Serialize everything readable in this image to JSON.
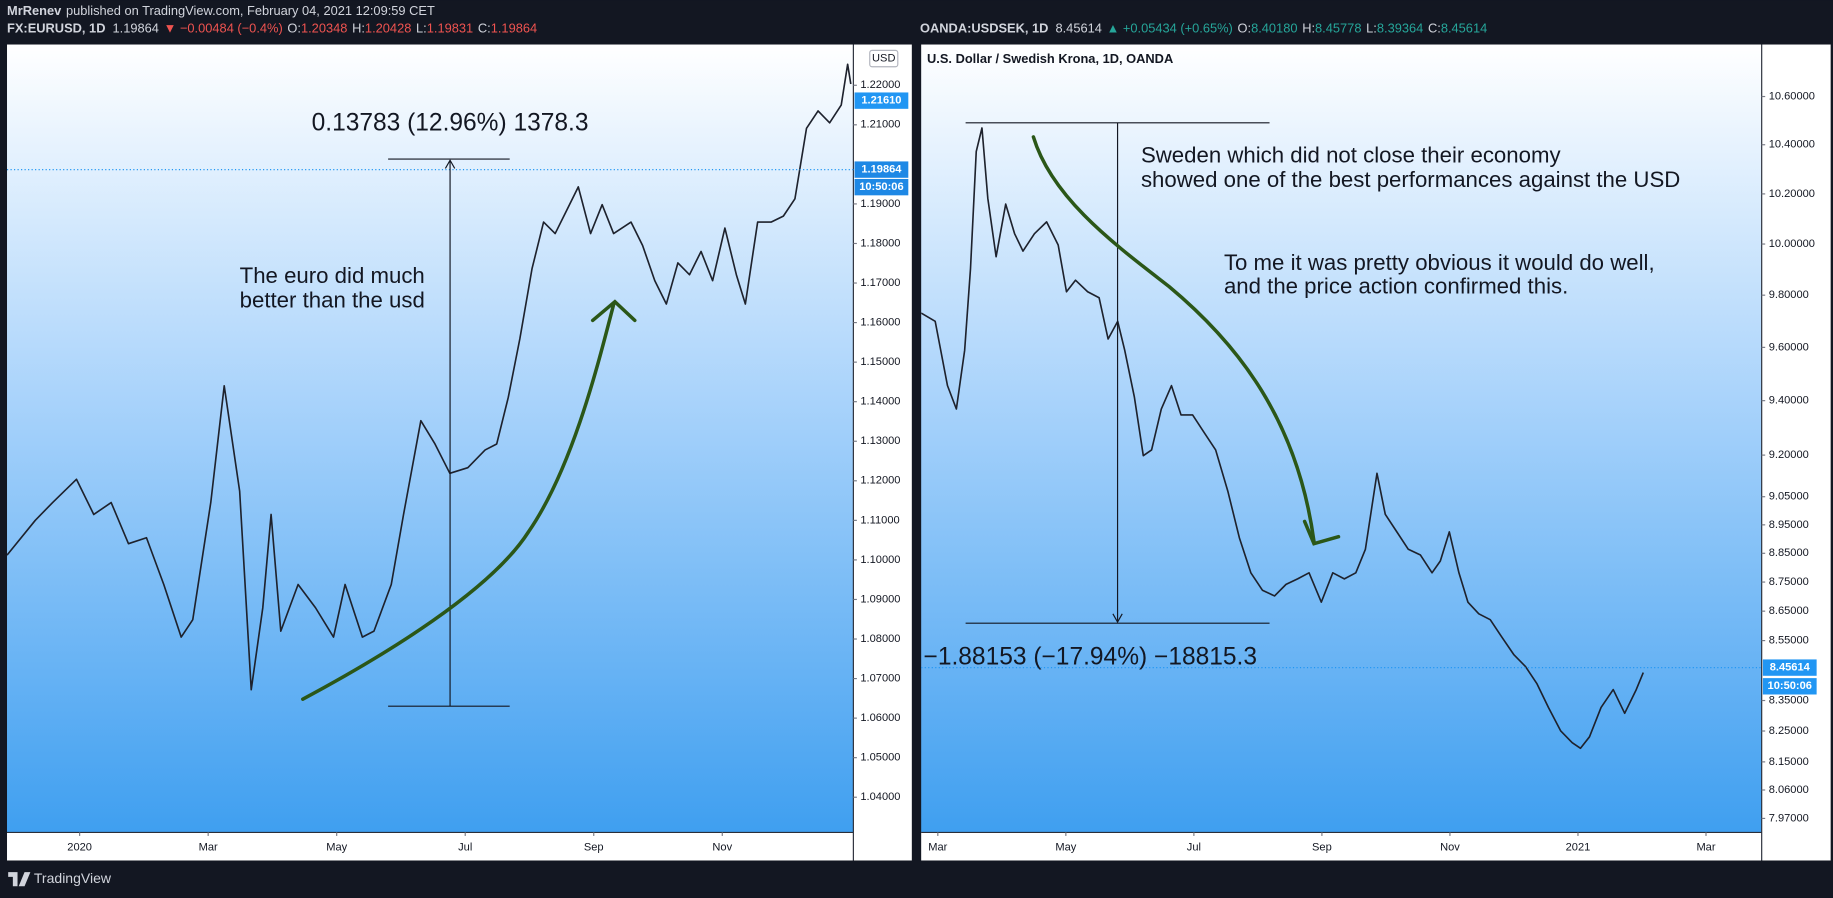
{
  "header": {
    "author": "MrRenev",
    "published": "published on TradingView.com, February 04, 2021 12:09:59 CET"
  },
  "footer": {
    "brand": "TradingView"
  },
  "chart_data": [
    {
      "type": "line",
      "symbol": "FX:EURUSD, 1D",
      "last": "1.19864",
      "change": "▼ −0.00484 (−0.4%)",
      "change_color": "#ef5350",
      "ohlc": [
        [
          "O:",
          "1.20348"
        ],
        [
          "H:",
          "1.20428"
        ],
        [
          "L:",
          "1.19831"
        ],
        [
          "C:",
          "1.19864"
        ]
      ],
      "currency": "USD",
      "price_tags": [
        "1.21610",
        "1.19864",
        "10:50:06"
      ],
      "measure": "0.13783 (12.96%) 1378.3",
      "notes": [
        "The euro did much",
        "better than the usd"
      ],
      "color": "#1e222d",
      "log_scale": false,
      "x": [
        -1.13,
        -0.69,
        -0.42,
        -0.05,
        0.22,
        0.49,
        0.76,
        1.04,
        1.31,
        1.58,
        1.76,
        2.04,
        2.25,
        2.49,
        2.67,
        2.85,
        2.98,
        3.13,
        3.4,
        3.67,
        3.95,
        4.13,
        4.4,
        4.58,
        4.85,
        5.04,
        5.31,
        5.53,
        5.76,
        6.04,
        6.31,
        6.49,
        6.67,
        6.85,
        7.04,
        7.22,
        7.4,
        7.58,
        7.76,
        7.95,
        8.13,
        8.31,
        8.58,
        8.76,
        8.95,
        9.13,
        9.31,
        9.49,
        9.67,
        9.85,
        10.04,
        10.22,
        10.36,
        10.55,
        10.76,
        10.95,
        11.13,
        11.31,
        11.49,
        11.67,
        11.85,
        11.95,
        12
      ],
      "values": [
        1.1012,
        1.11,
        1.1145,
        1.1204,
        1.1115,
        1.1145,
        1.1041,
        1.1056,
        1.0938,
        1.0805,
        1.0849,
        1.1145,
        1.144,
        1.1174,
        1.0672,
        1.0879,
        1.1115,
        1.082,
        1.0938,
        1.0879,
        1.0805,
        1.0938,
        1.0805,
        1.082,
        1.0938,
        1.1115,
        1.1352,
        1.1293,
        1.1219,
        1.1233,
        1.1278,
        1.1293,
        1.1411,
        1.1559,
        1.1736,
        1.1854,
        1.1825,
        1.1884,
        1.1943,
        1.1825,
        1.1898,
        1.1825,
        1.1854,
        1.1795,
        1.1706,
        1.1647,
        1.1751,
        1.1721,
        1.178,
        1.1706,
        1.1839,
        1.1721,
        1.1647,
        1.1854,
        1.1854,
        1.1869,
        1.1913,
        1.2091,
        1.2135,
        1.2105,
        1.215,
        1.2253,
        1.2203
      ],
      "xlim": [
        -1.13,
        12.04
      ],
      "xticks": [
        {
          "value": 0,
          "label": "2020"
        },
        {
          "value": 2,
          "label": "Mar"
        },
        {
          "value": 4,
          "label": "May"
        },
        {
          "value": 6,
          "label": "Jul"
        },
        {
          "value": 8,
          "label": "Sep"
        },
        {
          "value": 10,
          "label": "Nov"
        }
      ],
      "ylim": [
        1.0311,
        1.2303
      ],
      "yticks": [
        {
          "value": 1.04,
          "label": "1.04000"
        },
        {
          "value": 1.05,
          "label": "1.05000"
        },
        {
          "value": 1.06,
          "label": "1.06000"
        },
        {
          "value": 1.07,
          "label": "1.07000"
        },
        {
          "value": 1.08,
          "label": "1.08000"
        },
        {
          "value": 1.09,
          "label": "1.09000"
        },
        {
          "value": 1.1,
          "label": "1.10000"
        },
        {
          "value": 1.11,
          "label": "1.11000"
        },
        {
          "value": 1.12,
          "label": "1.12000"
        },
        {
          "value": 1.13,
          "label": "1.13000"
        },
        {
          "value": 1.14,
          "label": "1.14000"
        },
        {
          "value": 1.15,
          "label": "1.15000"
        },
        {
          "value": 1.16,
          "label": "1.16000"
        },
        {
          "value": 1.17,
          "label": "1.17000"
        },
        {
          "value": 1.18,
          "label": "1.18000"
        },
        {
          "value": 1.19,
          "label": "1.19000"
        },
        {
          "value": 1.21,
          "label": "1.21000"
        },
        {
          "value": 1.22,
          "label": "1.22000"
        }
      ]
    },
    {
      "type": "line",
      "symbol": "OANDA:USDSEK, 1D",
      "last": "8.45614",
      "change": "▲ +0.05434 (+0.65%)",
      "change_color": "#26a69a",
      "ohlc": [
        [
          "O:",
          "8.40180"
        ],
        [
          "H:",
          "8.45778"
        ],
        [
          "L:",
          "8.39364"
        ],
        [
          "C:",
          "8.45614"
        ]
      ],
      "title": "U.S. Dollar / Swedish Krona, 1D, OANDA",
      "price_tags": [
        "8.45614",
        "10:50:06"
      ],
      "measure": "−1.88153 (−17.94%) −18815.3",
      "notes": [
        "Sweden which did not close their economy",
        "showed one of the best performances against the USD",
        "To me it was pretty obvious it would do well,",
        "and the price action confirmed this."
      ],
      "color": "#1e222d",
      "log_scale": true,
      "x": [
        1.74,
        1.96,
        2.15,
        2.29,
        2.42,
        2.51,
        2.6,
        2.69,
        2.78,
        2.91,
        3.06,
        3.2,
        3.33,
        3.51,
        3.7,
        3.88,
        4.01,
        4.15,
        4.34,
        4.52,
        4.66,
        4.81,
        4.92,
        5.07,
        5.21,
        5.34,
        5.49,
        5.65,
        5.8,
        5.98,
        6.16,
        6.34,
        6.53,
        6.71,
        6.89,
        7.07,
        7.26,
        7.44,
        7.62,
        7.8,
        7.99,
        8.17,
        8.35,
        8.53,
        8.68,
        8.86,
        8.99,
        9.17,
        9.35,
        9.54,
        9.72,
        9.85,
        9.99,
        10.14,
        10.28,
        10.45,
        10.63,
        10.81,
        11.0,
        11.18,
        11.36,
        11.54,
        11.73,
        11.91,
        12.04,
        12.18,
        12.36,
        12.55,
        12.73,
        12.91,
        13.02
      ],
      "values": [
        9.731,
        9.699,
        9.456,
        9.369,
        9.589,
        9.904,
        10.372,
        10.469,
        10.182,
        9.95,
        10.159,
        10.041,
        9.972,
        10.041,
        10.088,
        9.996,
        9.813,
        9.858,
        9.813,
        9.79,
        9.632,
        9.699,
        9.589,
        9.413,
        9.198,
        9.219,
        9.369,
        9.456,
        9.347,
        9.347,
        9.283,
        9.219,
        9.07,
        8.904,
        8.782,
        8.722,
        8.702,
        8.742,
        8.761,
        8.782,
        8.681,
        8.782,
        8.761,
        8.782,
        8.864,
        9.134,
        8.987,
        8.925,
        8.864,
        8.844,
        8.782,
        8.823,
        8.925,
        8.782,
        8.681,
        8.641,
        8.621,
        8.562,
        8.502,
        8.463,
        8.405,
        8.327,
        8.25,
        8.212,
        8.194,
        8.231,
        8.327,
        8.386,
        8.308,
        8.386,
        8.443
      ],
      "xlim": [
        1.74,
        14.87
      ],
      "xticks": [
        {
          "value": 2,
          "label": "Mar"
        },
        {
          "value": 4,
          "label": "May"
        },
        {
          "value": 6,
          "label": "Jul"
        },
        {
          "value": 8,
          "label": "Sep"
        },
        {
          "value": 10,
          "label": "Nov"
        },
        {
          "value": 12,
          "label": "2021"
        },
        {
          "value": 14,
          "label": "Mar"
        }
      ],
      "ylim": [
        7.926,
        10.82
      ],
      "yticks": [
        {
          "value": 7.97,
          "label": "7.97000"
        },
        {
          "value": 8.06,
          "label": "8.06000"
        },
        {
          "value": 8.15,
          "label": "8.15000"
        },
        {
          "value": 8.25,
          "label": "8.25000"
        },
        {
          "value": 8.35,
          "label": "8.35000"
        },
        {
          "value": 8.55,
          "label": "8.55000"
        },
        {
          "value": 8.65,
          "label": "8.65000"
        },
        {
          "value": 8.75,
          "label": "8.75000"
        },
        {
          "value": 8.85,
          "label": "8.85000"
        },
        {
          "value": 8.95,
          "label": "8.95000"
        },
        {
          "value": 9.05,
          "label": "9.05000"
        },
        {
          "value": 9.2,
          "label": "9.20000"
        },
        {
          "value": 9.4,
          "label": "9.40000"
        },
        {
          "value": 9.6,
          "label": "9.60000"
        },
        {
          "value": 9.8,
          "label": "9.80000"
        },
        {
          "value": 10.0,
          "label": "10.00000"
        },
        {
          "value": 10.2,
          "label": "10.20000"
        },
        {
          "value": 10.4,
          "label": "10.40000"
        },
        {
          "value": 10.6,
          "label": "10.60000"
        }
      ]
    }
  ]
}
